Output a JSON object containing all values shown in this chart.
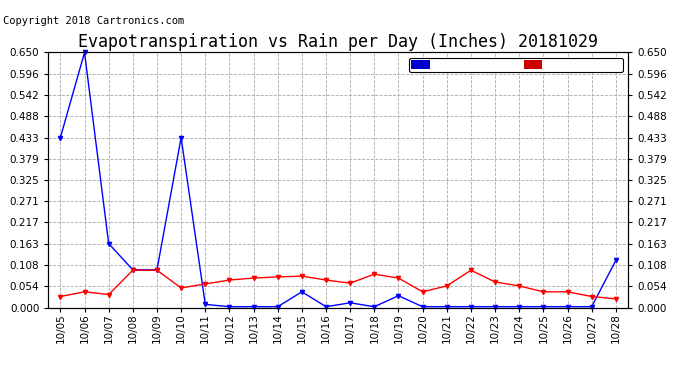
{
  "title": "Evapotranspiration vs Rain per Day (Inches) 20181029",
  "copyright": "Copyright 2018 Cartronics.com",
  "x_labels": [
    "10/05",
    "10/06",
    "10/07",
    "10/08",
    "10/09",
    "10/10",
    "10/11",
    "10/12",
    "10/13",
    "10/14",
    "10/15",
    "10/16",
    "10/17",
    "10/18",
    "10/19",
    "10/20",
    "10/21",
    "10/22",
    "10/23",
    "10/24",
    "10/25",
    "10/26",
    "10/27",
    "10/28"
  ],
  "rain_values": [
    0.433,
    0.65,
    0.163,
    0.096,
    0.096,
    0.433,
    0.008,
    0.002,
    0.002,
    0.002,
    0.04,
    0.002,
    0.012,
    0.002,
    0.03,
    0.002,
    0.002,
    0.002,
    0.002,
    0.002,
    0.002,
    0.002,
    0.002,
    0.12
  ],
  "et_values": [
    0.028,
    0.04,
    0.033,
    0.095,
    0.095,
    0.05,
    0.06,
    0.07,
    0.075,
    0.078,
    0.08,
    0.07,
    0.062,
    0.085,
    0.075,
    0.04,
    0.055,
    0.095,
    0.065,
    0.055,
    0.04,
    0.04,
    0.028,
    0.022
  ],
  "rain_color": "#0000FF",
  "et_color": "#FF0000",
  "background_color": "#ffffff",
  "grid_color": "#aaaaaa",
  "ylim": [
    0.0,
    0.65
  ],
  "yticks": [
    0.0,
    0.054,
    0.108,
    0.163,
    0.217,
    0.271,
    0.325,
    0.379,
    0.433,
    0.488,
    0.542,
    0.596,
    0.65
  ],
  "legend_rain_bg": "#0000CC",
  "legend_et_bg": "#CC0000",
  "title_fontsize": 12,
  "tick_fontsize": 7.5,
  "copyright_fontsize": 7.5,
  "legend_fontsize": 7.5
}
